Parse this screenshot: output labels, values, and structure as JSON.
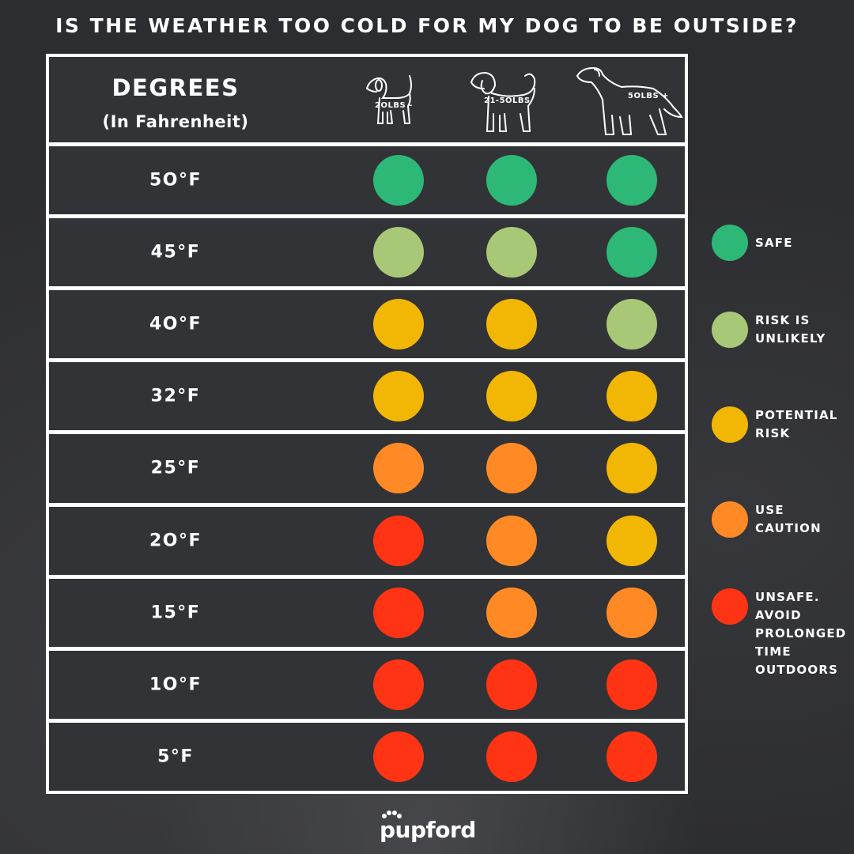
{
  "title": "IS THE WEATHER TOO COLD FOR MY DOG TO BE OUTSIDE?",
  "header": {
    "degrees_title": "DEGREES",
    "degrees_subtitle": "(In Fahrenheit)",
    "dog_sizes": [
      "2OLBS -",
      "21-5OLBS",
      "5OLBS +"
    ]
  },
  "colors": {
    "safe": "#2db877",
    "unlikely": "#a8c878",
    "potential": "#f2b705",
    "caution": "#ff8a25",
    "unsafe": "#ff3414"
  },
  "rows": [
    {
      "temp": "5O°F",
      "levels": [
        "safe",
        "safe",
        "safe"
      ]
    },
    {
      "temp": "45°F",
      "levels": [
        "unlikely",
        "unlikely",
        "safe"
      ]
    },
    {
      "temp": "4O°F",
      "levels": [
        "potential",
        "potential",
        "unlikely"
      ]
    },
    {
      "temp": "32°F",
      "levels": [
        "potential",
        "potential",
        "potential"
      ]
    },
    {
      "temp": "25°F",
      "levels": [
        "caution",
        "caution",
        "potential"
      ]
    },
    {
      "temp": "2O°F",
      "levels": [
        "unsafe",
        "caution",
        "potential"
      ]
    },
    {
      "temp": "15°F",
      "levels": [
        "unsafe",
        "caution",
        "caution"
      ]
    },
    {
      "temp": "1O°F",
      "levels": [
        "unsafe",
        "unsafe",
        "unsafe"
      ]
    },
    {
      "temp": "5°F",
      "levels": [
        "unsafe",
        "unsafe",
        "unsafe"
      ]
    }
  ],
  "legend": [
    {
      "key": "safe",
      "label": "SAFE"
    },
    {
      "key": "unlikely",
      "label": "RISK IS UNLIKELY"
    },
    {
      "key": "potential",
      "label": "POTENTIAL RISK"
    },
    {
      "key": "caution",
      "label": "USE CAUTION"
    },
    {
      "key": "unsafe",
      "label": "UNSAFE. AVOID PROLONGED TIME OUTDOORS"
    }
  ],
  "logo": "pupford"
}
